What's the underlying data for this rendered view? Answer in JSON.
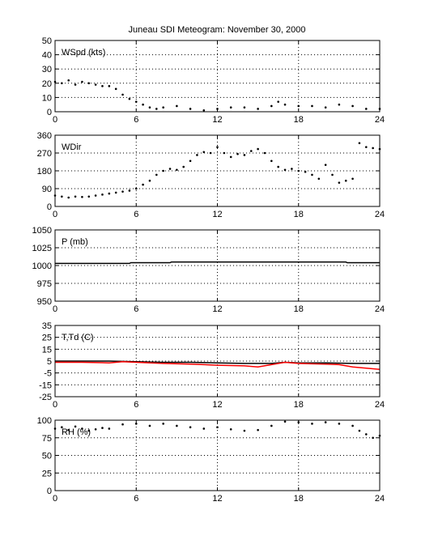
{
  "figure": {
    "title": "Juneau SDI Meteogram:  November 30, 2000"
  },
  "chart_data": [
    {
      "id": "wspd",
      "type": "scatter",
      "panel_label": "WSpd (kts)",
      "xlim": [
        0,
        24
      ],
      "ylim": [
        0,
        50
      ],
      "xticks": [
        0,
        6,
        12,
        18,
        24
      ],
      "yticks": [
        0,
        10,
        20,
        30,
        40,
        50
      ],
      "grid": true,
      "series": [
        {
          "color": "#000000",
          "points": [
            [
              0,
              21
            ],
            [
              0.5,
              20
            ],
            [
              1,
              22
            ],
            [
              1.5,
              19
            ],
            [
              2,
              21
            ],
            [
              2.5,
              20
            ],
            [
              3,
              19
            ],
            [
              3.5,
              18
            ],
            [
              4,
              18
            ],
            [
              4.5,
              16
            ],
            [
              5,
              12
            ],
            [
              5.5,
              9
            ],
            [
              6,
              7
            ],
            [
              6.5,
              5
            ],
            [
              7,
              3
            ],
            [
              7.5,
              2
            ],
            [
              8,
              3
            ],
            [
              9,
              4
            ],
            [
              10,
              2
            ],
            [
              11,
              1
            ],
            [
              12,
              2
            ],
            [
              13,
              3
            ],
            [
              14,
              3
            ],
            [
              15,
              2
            ],
            [
              16,
              4
            ],
            [
              16.5,
              7
            ],
            [
              17,
              5
            ],
            [
              18,
              4
            ],
            [
              19,
              4
            ],
            [
              20,
              3
            ],
            [
              21,
              5
            ],
            [
              22,
              4
            ],
            [
              23,
              2
            ],
            [
              24,
              2
            ]
          ]
        }
      ]
    },
    {
      "id": "wdir",
      "type": "scatter",
      "panel_label": "WDir",
      "xlim": [
        0,
        24
      ],
      "ylim": [
        0,
        360
      ],
      "xticks": [
        0,
        6,
        12,
        18,
        24
      ],
      "yticks": [
        0,
        90,
        180,
        270,
        360
      ],
      "grid": true,
      "series": [
        {
          "color": "#000000",
          "points": [
            [
              0,
              55
            ],
            [
              0.5,
              50
            ],
            [
              1,
              45
            ],
            [
              1.5,
              50
            ],
            [
              2,
              48
            ],
            [
              2.5,
              50
            ],
            [
              3,
              55
            ],
            [
              3.5,
              60
            ],
            [
              4,
              65
            ],
            [
              4.5,
              70
            ],
            [
              5,
              75
            ],
            [
              5.5,
              80
            ],
            [
              6,
              90
            ],
            [
              6.5,
              110
            ],
            [
              7,
              130
            ],
            [
              7.5,
              160
            ],
            [
              8,
              180
            ],
            [
              8.5,
              190
            ],
            [
              9,
              185
            ],
            [
              9.5,
              200
            ],
            [
              10,
              230
            ],
            [
              10.5,
              260
            ],
            [
              11,
              275
            ],
            [
              11.5,
              270
            ],
            [
              12,
              300
            ],
            [
              12.5,
              270
            ],
            [
              13,
              250
            ],
            [
              13.5,
              265
            ],
            [
              14,
              260
            ],
            [
              14.5,
              280
            ],
            [
              15,
              290
            ],
            [
              15.5,
              270
            ],
            [
              16,
              230
            ],
            [
              16.5,
              200
            ],
            [
              17,
              185
            ],
            [
              17.5,
              190
            ],
            [
              18,
              180
            ],
            [
              18.5,
              175
            ],
            [
              19,
              160
            ],
            [
              19.5,
              140
            ],
            [
              20,
              210
            ],
            [
              20.5,
              160
            ],
            [
              21,
              120
            ],
            [
              21.5,
              130
            ],
            [
              22,
              140
            ],
            [
              22.5,
              320
            ],
            [
              23,
              300
            ],
            [
              23.5,
              295
            ],
            [
              24,
              290
            ]
          ]
        }
      ]
    },
    {
      "id": "pressure",
      "type": "line",
      "panel_label": "P (mb)",
      "xlim": [
        0,
        24
      ],
      "ylim": [
        950,
        1050
      ],
      "xticks": [
        0,
        6,
        12,
        18,
        24
      ],
      "yticks": [
        950,
        975,
        1000,
        1025,
        1050
      ],
      "grid": true,
      "series": [
        {
          "color": "#000000",
          "points": [
            [
              0,
              1003
            ],
            [
              3,
              1003
            ],
            [
              5.5,
              1003
            ],
            [
              5.6,
              1004
            ],
            [
              8.5,
              1004
            ],
            [
              8.6,
              1005
            ],
            [
              21.5,
              1005
            ],
            [
              21.6,
              1004
            ],
            [
              24,
              1004
            ]
          ]
        }
      ]
    },
    {
      "id": "temp-dewpoint",
      "type": "line",
      "panel_label": "T,Td (C)",
      "xlim": [
        0,
        24
      ],
      "ylim": [
        -25,
        35
      ],
      "xticks": [
        0,
        6,
        12,
        18,
        24
      ],
      "yticks": [
        -25,
        -15,
        -5,
        5,
        15,
        25,
        35
      ],
      "grid": true,
      "series": [
        {
          "color": "#000000",
          "points": [
            [
              0,
              5
            ],
            [
              2,
              5
            ],
            [
              4,
              5
            ],
            [
              6,
              4.5
            ],
            [
              8,
              4
            ],
            [
              10,
              4
            ],
            [
              12,
              3.5
            ],
            [
              14,
              3
            ],
            [
              16,
              3
            ],
            [
              17,
              4
            ],
            [
              18,
              3.5
            ],
            [
              20,
              3.5
            ],
            [
              22,
              3
            ],
            [
              24,
              3
            ]
          ]
        },
        {
          "color": "#ff0000",
          "points": [
            [
              0,
              4
            ],
            [
              2,
              4
            ],
            [
              4,
              3.5
            ],
            [
              5,
              4.5
            ],
            [
              6,
              4
            ],
            [
              8,
              3
            ],
            [
              10,
              2.5
            ],
            [
              12,
              1.5
            ],
            [
              14,
              1
            ],
            [
              15,
              0
            ],
            [
              16,
              2
            ],
            [
              17,
              4
            ],
            [
              18,
              3
            ],
            [
              20,
              2.5
            ],
            [
              21,
              2
            ],
            [
              22,
              0
            ],
            [
              23,
              -1
            ],
            [
              24,
              -2
            ]
          ]
        }
      ]
    },
    {
      "id": "rh",
      "type": "scatter",
      "panel_label": "RH (%)",
      "xlim": [
        0,
        24
      ],
      "ylim": [
        0,
        100
      ],
      "xticks": [
        0,
        6,
        12,
        18,
        24
      ],
      "yticks": [
        0,
        25,
        50,
        75,
        100
      ],
      "grid": true,
      "series": [
        {
          "color": "#000000",
          "points": [
            [
              0,
              88
            ],
            [
              0.5,
              90
            ],
            [
              1,
              86
            ],
            [
              1.5,
              91
            ],
            [
              2,
              88
            ],
            [
              2.5,
              85
            ],
            [
              3,
              87
            ],
            [
              3.5,
              89
            ],
            [
              4,
              88
            ],
            [
              5,
              94
            ],
            [
              6,
              95
            ],
            [
              7,
              92
            ],
            [
              8,
              95
            ],
            [
              9,
              92
            ],
            [
              10,
              90
            ],
            [
              11,
              88
            ],
            [
              12,
              90
            ],
            [
              13,
              87
            ],
            [
              14,
              85
            ],
            [
              15,
              86
            ],
            [
              16,
              92
            ],
            [
              17,
              98
            ],
            [
              18,
              97
            ],
            [
              19,
              95
            ],
            [
              20,
              97
            ],
            [
              21,
              95
            ],
            [
              22,
              92
            ],
            [
              22.5,
              85
            ],
            [
              23,
              80
            ],
            [
              23.5,
              75
            ],
            [
              24,
              78
            ]
          ]
        }
      ]
    }
  ]
}
